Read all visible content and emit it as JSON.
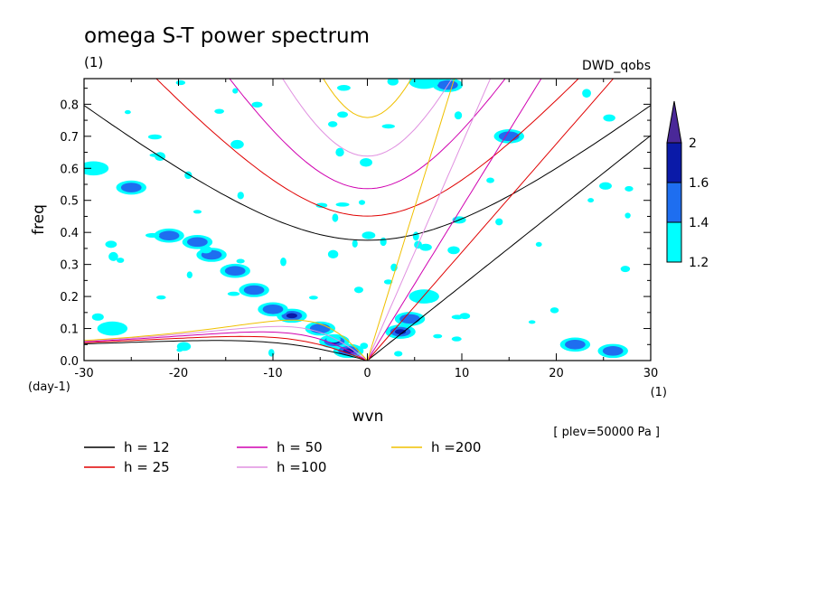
{
  "chart_data": {
    "type": "heatmap",
    "title": "omega S-T power spectrum",
    "subtitle": "(1)",
    "dataset_label": "DWD_qobs",
    "xlabel": "wvn",
    "ylabel": "freq",
    "x_unit": "(1)",
    "y_unit": "(day-1)",
    "level_note": "[ plev=50000 Pa ]",
    "xlim": [
      -30,
      30
    ],
    "ylim": [
      0,
      0.88
    ],
    "x_ticks": [
      -30,
      -20,
      -10,
      0,
      10,
      20,
      30
    ],
    "y_ticks": [
      0.0,
      0.1,
      0.2,
      0.3,
      0.4,
      0.5,
      0.6,
      0.7,
      0.8
    ],
    "x_tick_labels": [
      "-30",
      "-20",
      "-10",
      "0",
      "10",
      "20",
      "30"
    ],
    "y_tick_labels": [
      "0.0",
      "0.1",
      "0.2",
      "0.3",
      "0.4",
      "0.5",
      "0.6",
      "0.7",
      "0.8"
    ],
    "colorbar": {
      "levels": [
        1.2,
        1.4,
        1.6,
        2
      ],
      "labels": [
        "1.2",
        "1.4",
        "1.6",
        "2"
      ],
      "colors": [
        "#00ffff",
        "#1e6ef0",
        "#0a1aa8",
        "#4a2898"
      ]
    },
    "dispersion_curves": [
      {
        "label": "h = 12",
        "h": 12,
        "color": "#000000"
      },
      {
        "label": "h = 25",
        "h": 25,
        "color": "#e00000"
      },
      {
        "label": "h = 50",
        "h": 50,
        "color": "#d000b0"
      },
      {
        "label": "h =100",
        "h": 100,
        "color": "#e090e0"
      },
      {
        "label": "h =200",
        "h": 200,
        "color": "#f0c000"
      }
    ],
    "power_regions": [
      {
        "x": -3.5,
        "y": 0.06,
        "level": 3
      },
      {
        "x": -2,
        "y": 0.03,
        "level": 3
      },
      {
        "x": -5,
        "y": 0.1,
        "level": 2
      },
      {
        "x": -8,
        "y": 0.14,
        "level": 3
      },
      {
        "x": -10,
        "y": 0.16,
        "level": 2
      },
      {
        "x": -12,
        "y": 0.22,
        "level": 2
      },
      {
        "x": -14,
        "y": 0.28,
        "level": 2
      },
      {
        "x": -16.5,
        "y": 0.33,
        "level": 2
      },
      {
        "x": -18,
        "y": 0.37,
        "level": 2
      },
      {
        "x": -21,
        "y": 0.39,
        "level": 2
      },
      {
        "x": -25,
        "y": 0.54,
        "level": 2
      },
      {
        "x": -29,
        "y": 0.6,
        "level": 1
      },
      {
        "x": 3.5,
        "y": 0.09,
        "level": 3
      },
      {
        "x": 4.5,
        "y": 0.13,
        "level": 2
      },
      {
        "x": 6,
        "y": 0.2,
        "level": 1
      },
      {
        "x": 8.5,
        "y": 0.86,
        "level": 2
      },
      {
        "x": 6,
        "y": 0.87,
        "level": 1
      },
      {
        "x": 15,
        "y": 0.7,
        "level": 2
      },
      {
        "x": 22,
        "y": 0.05,
        "level": 2
      },
      {
        "x": 26,
        "y": 0.03,
        "level": 2
      },
      {
        "x": -27,
        "y": 0.1,
        "level": 1
      }
    ]
  }
}
